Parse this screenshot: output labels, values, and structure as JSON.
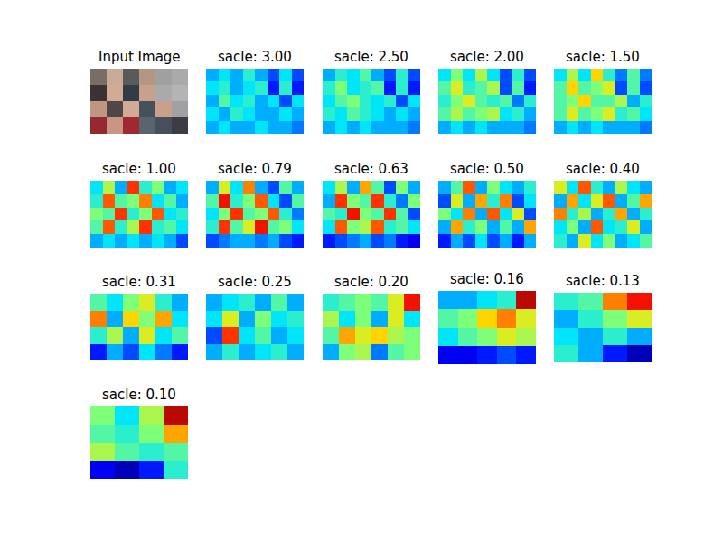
{
  "chart_data": [
    {
      "type": "image",
      "title": "Input Image",
      "tick_labels": false,
      "pixels": [
        [
          [
            120,
            110,
            100
          ],
          [
            200,
            170,
            150
          ],
          [
            90,
            90,
            90
          ],
          [
            180,
            150,
            130
          ],
          [
            160,
            160,
            160
          ],
          [
            170,
            170,
            170
          ]
        ],
        [
          [
            60,
            50,
            50
          ],
          [
            210,
            170,
            150
          ],
          [
            50,
            60,
            70
          ],
          [
            200,
            160,
            140
          ],
          [
            170,
            170,
            170
          ],
          [
            180,
            180,
            180
          ]
        ],
        [
          [
            190,
            150,
            130
          ],
          [
            80,
            70,
            70
          ],
          [
            210,
            170,
            150
          ],
          [
            70,
            80,
            90
          ],
          [
            200,
            160,
            140
          ],
          [
            160,
            160,
            165
          ]
        ],
        [
          [
            150,
            40,
            50
          ],
          [
            200,
            150,
            130
          ],
          [
            160,
            40,
            50
          ],
          [
            90,
            100,
            110
          ],
          [
            70,
            80,
            90
          ],
          [
            60,
            60,
            70
          ]
        ]
      ]
    },
    {
      "type": "heatmap",
      "title": "sacle: 3.00",
      "tick_labels": false,
      "zlim": [
        0,
        1
      ],
      "cells": [
        [
          0.3,
          0.35,
          0.3,
          0.4,
          0.3,
          0.2,
          0.35,
          0.2
        ],
        [
          0.35,
          0.4,
          0.3,
          0.35,
          0.4,
          0.15,
          0.4,
          0.15
        ],
        [
          0.3,
          0.45,
          0.35,
          0.4,
          0.3,
          0.35,
          0.2,
          0.35
        ],
        [
          0.35,
          0.3,
          0.4,
          0.35,
          0.3,
          0.3,
          0.35,
          0.3
        ],
        [
          0.3,
          0.35,
          0.3,
          0.3,
          0.35,
          0.3,
          0.3,
          0.25
        ]
      ]
    },
    {
      "type": "heatmap",
      "title": "sacle: 2.50",
      "tick_labels": false,
      "zlim": [
        0,
        1
      ],
      "cells": [
        [
          0.3,
          0.4,
          0.35,
          0.45,
          0.3,
          0.2,
          0.4,
          0.2
        ],
        [
          0.4,
          0.5,
          0.35,
          0.4,
          0.45,
          0.15,
          0.4,
          0.15
        ],
        [
          0.35,
          0.45,
          0.5,
          0.4,
          0.35,
          0.4,
          0.2,
          0.35
        ],
        [
          0.4,
          0.35,
          0.45,
          0.4,
          0.35,
          0.3,
          0.35,
          0.3
        ],
        [
          0.3,
          0.35,
          0.3,
          0.35,
          0.3,
          0.3,
          0.3,
          0.25
        ]
      ]
    },
    {
      "type": "heatmap",
      "title": "sacle: 2.00",
      "tick_labels": false,
      "zlim": [
        0,
        1
      ],
      "cells": [
        [
          0.35,
          0.5,
          0.35,
          0.55,
          0.35,
          0.2,
          0.4,
          0.2
        ],
        [
          0.45,
          0.6,
          0.4,
          0.45,
          0.55,
          0.2,
          0.45,
          0.15
        ],
        [
          0.4,
          0.5,
          0.6,
          0.45,
          0.4,
          0.45,
          0.25,
          0.4
        ],
        [
          0.45,
          0.55,
          0.45,
          0.5,
          0.55,
          0.35,
          0.4,
          0.3
        ],
        [
          0.3,
          0.35,
          0.3,
          0.35,
          0.3,
          0.3,
          0.3,
          0.25
        ]
      ]
    },
    {
      "type": "heatmap",
      "title": "sacle: 1.50",
      "tick_labels": false,
      "zlim": [
        0,
        1
      ],
      "cells": [
        [
          0.35,
          0.55,
          0.35,
          0.65,
          0.4,
          0.25,
          0.45,
          0.25
        ],
        [
          0.45,
          0.65,
          0.45,
          0.5,
          0.6,
          0.2,
          0.45,
          0.2
        ],
        [
          0.45,
          0.5,
          0.65,
          0.45,
          0.45,
          0.55,
          0.3,
          0.4
        ],
        [
          0.45,
          0.6,
          0.45,
          0.5,
          0.6,
          0.4,
          0.45,
          0.35
        ],
        [
          0.3,
          0.35,
          0.3,
          0.35,
          0.3,
          0.3,
          0.3,
          0.25
        ]
      ]
    },
    {
      "type": "heatmap",
      "title": "sacle: 1.00",
      "tick_labels": false,
      "zlim": [
        0,
        1
      ],
      "cells": [
        [
          0.35,
          0.55,
          0.3,
          0.85,
          0.4,
          0.5,
          0.3,
          0.35
        ],
        [
          0.4,
          0.8,
          0.45,
          0.5,
          0.75,
          0.35,
          0.45,
          0.3
        ],
        [
          0.5,
          0.45,
          0.85,
          0.4,
          0.5,
          0.8,
          0.35,
          0.4
        ],
        [
          0.45,
          0.8,
          0.4,
          0.55,
          0.85,
          0.4,
          0.45,
          0.35
        ],
        [
          0.3,
          0.35,
          0.3,
          0.35,
          0.3,
          0.35,
          0.3,
          0.2
        ]
      ]
    },
    {
      "type": "heatmap",
      "title": "sacle: 0.79",
      "tick_labels": false,
      "zlim": [
        0,
        1
      ],
      "cells": [
        [
          0.3,
          0.6,
          0.35,
          0.75,
          0.3,
          0.2,
          0.45,
          0.3
        ],
        [
          0.45,
          0.9,
          0.4,
          0.5,
          0.8,
          0.35,
          0.2,
          0.45
        ],
        [
          0.35,
          0.5,
          0.85,
          0.45,
          0.5,
          0.8,
          0.4,
          0.25
        ],
        [
          0.4,
          0.85,
          0.45,
          0.6,
          0.9,
          0.45,
          0.5,
          0.35
        ],
        [
          0.2,
          0.25,
          0.3,
          0.3,
          0.25,
          0.3,
          0.2,
          0.15
        ]
      ]
    },
    {
      "type": "heatmap",
      "title": "sacle: 0.63",
      "tick_labels": false,
      "zlim": [
        0,
        1
      ],
      "cells": [
        [
          0.35,
          0.55,
          0.3,
          0.7,
          0.45,
          0.2,
          0.5,
          0.3
        ],
        [
          0.3,
          0.85,
          0.5,
          0.45,
          0.85,
          0.4,
          0.25,
          0.5
        ],
        [
          0.45,
          0.4,
          0.9,
          0.5,
          0.45,
          0.85,
          0.45,
          0.2
        ],
        [
          0.35,
          0.8,
          0.5,
          0.55,
          0.8,
          0.4,
          0.45,
          0.35
        ],
        [
          0.15,
          0.2,
          0.25,
          0.3,
          0.2,
          0.25,
          0.15,
          0.1
        ]
      ]
    },
    {
      "type": "heatmap",
      "title": "sacle: 0.50",
      "tick_labels": false,
      "zlim": [
        0,
        1
      ],
      "cells": [
        [
          0.3,
          0.45,
          0.8,
          0.3,
          0.5,
          0.35,
          0.3,
          0.4
        ],
        [
          0.2,
          0.6,
          0.3,
          0.7,
          0.4,
          0.75,
          0.2,
          0.35
        ],
        [
          0.5,
          0.35,
          0.75,
          0.3,
          0.8,
          0.35,
          0.6,
          0.2
        ],
        [
          0.3,
          0.7,
          0.4,
          0.5,
          0.3,
          0.45,
          0.3,
          0.7
        ],
        [
          0.15,
          0.3,
          0.2,
          0.35,
          0.2,
          0.3,
          0.15,
          0.3
        ]
      ]
    },
    {
      "type": "heatmap",
      "title": "sacle: 0.40",
      "tick_labels": false,
      "zlim": [
        0,
        1
      ],
      "cells": [
        [
          0.6,
          0.35,
          0.8,
          0.4,
          0.3,
          0.55,
          0.35,
          0.3
        ],
        [
          0.3,
          0.7,
          0.35,
          0.6,
          0.8,
          0.3,
          0.45,
          0.7
        ],
        [
          0.75,
          0.4,
          0.55,
          0.3,
          0.4,
          0.7,
          0.3,
          0.4
        ],
        [
          0.35,
          0.5,
          0.3,
          0.8,
          0.35,
          0.4,
          0.6,
          0.3
        ],
        [
          0.4,
          0.3,
          0.6,
          0.35,
          0.5,
          0.3,
          0.35,
          0.45
        ]
      ]
    },
    {
      "type": "heatmap",
      "title": "sacle: 0.31",
      "tick_labels": false,
      "zlim": [
        0,
        1
      ],
      "cells": [
        [
          0.45,
          0.35,
          0.5,
          0.6,
          0.4,
          0.3
        ],
        [
          0.75,
          0.3,
          0.65,
          0.5,
          0.7,
          0.35
        ],
        [
          0.4,
          0.55,
          0.3,
          0.6,
          0.35,
          0.45
        ],
        [
          0.15,
          0.3,
          0.2,
          0.35,
          0.25,
          0.15
        ]
      ]
    },
    {
      "type": "heatmap",
      "title": "sacle: 0.25",
      "tick_labels": false,
      "zlim": [
        0,
        1
      ],
      "cells": [
        [
          0.3,
          0.35,
          0.4,
          0.3,
          0.45,
          0.3
        ],
        [
          0.35,
          0.6,
          0.3,
          0.5,
          0.35,
          0.4
        ],
        [
          0.2,
          0.85,
          0.35,
          0.45,
          0.3,
          0.35
        ],
        [
          0.3,
          0.4,
          0.3,
          0.35,
          0.4,
          0.3
        ]
      ]
    },
    {
      "type": "heatmap",
      "title": "sacle: 0.20",
      "tick_labels": false,
      "zlim": [
        0,
        1
      ],
      "cells": [
        [
          0.4,
          0.45,
          0.5,
          0.45,
          0.6,
          0.9
        ],
        [
          0.55,
          0.35,
          0.5,
          0.3,
          0.6,
          0.35
        ],
        [
          0.45,
          0.7,
          0.6,
          0.65,
          0.55,
          0.5
        ],
        [
          0.3,
          0.5,
          0.55,
          0.25,
          0.45,
          0.5
        ]
      ]
    },
    {
      "type": "heatmap",
      "title": "sacle: 0.16",
      "tick_labels": false,
      "zlim": [
        0,
        1
      ],
      "cells": [
        [
          0.3,
          0.3,
          0.35,
          0.4,
          0.95
        ],
        [
          0.45,
          0.5,
          0.65,
          0.75,
          0.6
        ],
        [
          0.35,
          0.45,
          0.5,
          0.6,
          0.55
        ],
        [
          0.1,
          0.1,
          0.15,
          0.2,
          0.15
        ]
      ]
    },
    {
      "type": "heatmap",
      "title": "sacle: 0.13",
      "tick_labels": false,
      "zlim": [
        0,
        1
      ],
      "cells": [
        [
          0.4,
          0.45,
          0.75,
          0.9
        ],
        [
          0.3,
          0.4,
          0.5,
          0.6
        ],
        [
          0.35,
          0.3,
          0.4,
          0.3
        ],
        [
          0.4,
          0.3,
          0.15,
          0.05
        ]
      ]
    },
    {
      "type": "heatmap",
      "title": "sacle: 0.10",
      "tick_labels": false,
      "zlim": [
        0,
        1
      ],
      "cells": [
        [
          0.5,
          0.35,
          0.55,
          0.95
        ],
        [
          0.45,
          0.4,
          0.5,
          0.7
        ],
        [
          0.55,
          0.45,
          0.4,
          0.45
        ],
        [
          0.1,
          0.05,
          0.15,
          0.4
        ]
      ]
    }
  ]
}
